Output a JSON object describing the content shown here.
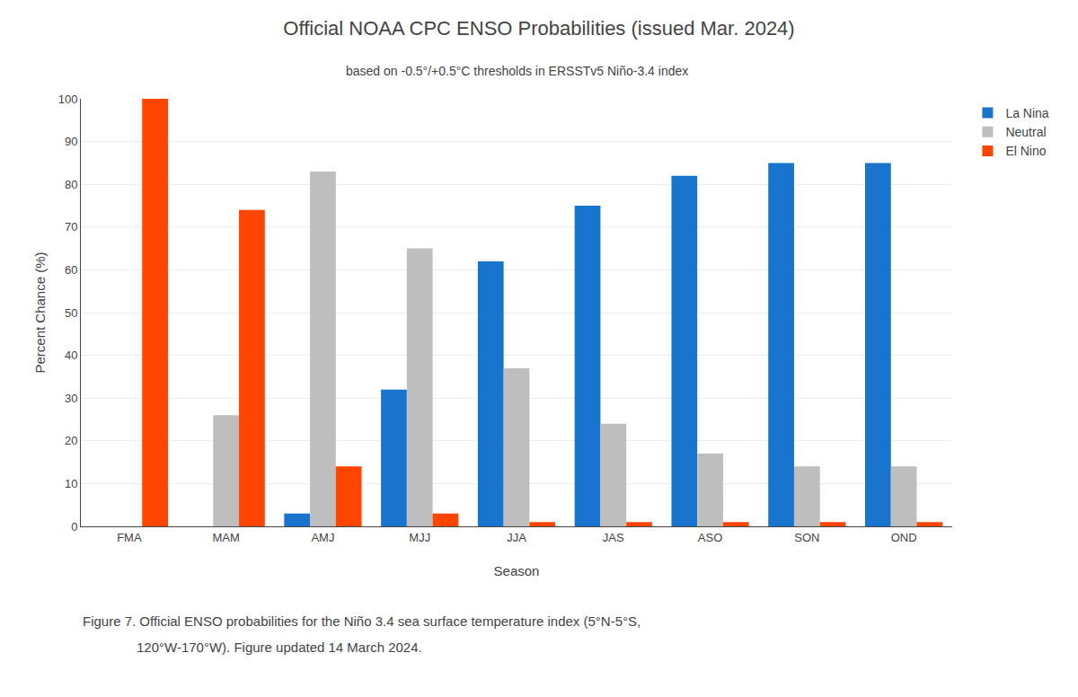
{
  "chart_data": {
    "type": "bar",
    "title": "Official NOAA CPC ENSO Probabilities (issued Mar. 2024)",
    "subtitle": "based on -0.5°/+0.5°C thresholds in ERSSTv5 Niño-3.4 index",
    "xlabel": "Season",
    "ylabel": "Percent Chance (%)",
    "categories": [
      "FMA",
      "MAM",
      "AMJ",
      "MJJ",
      "JJA",
      "JAS",
      "ASO",
      "SON",
      "OND"
    ],
    "series": [
      {
        "name": "La Nina",
        "color": "#1874CD",
        "values": [
          0,
          0,
          3,
          32,
          62,
          75,
          82,
          85,
          85
        ]
      },
      {
        "name": "Neutral",
        "color": "#BEBEBE",
        "values": [
          0,
          26,
          83,
          65,
          37,
          24,
          17,
          14,
          14
        ]
      },
      {
        "name": "El Nino",
        "color": "#FF4500",
        "values": [
          100,
          74,
          14,
          3,
          1,
          1,
          1,
          1,
          1
        ]
      }
    ],
    "ylim": [
      0,
      100
    ],
    "yticks": [
      0,
      10,
      20,
      30,
      40,
      50,
      60,
      70,
      80,
      90,
      100
    ],
    "grid": true,
    "legend": "upper right",
    "annotations": [
      "Figure 7. Official ENSO probabilities for the Niño 3.4 sea surface temperature index (5°N-5°S,",
      "120°W-170°W). Figure updated 14 March 2024."
    ]
  }
}
